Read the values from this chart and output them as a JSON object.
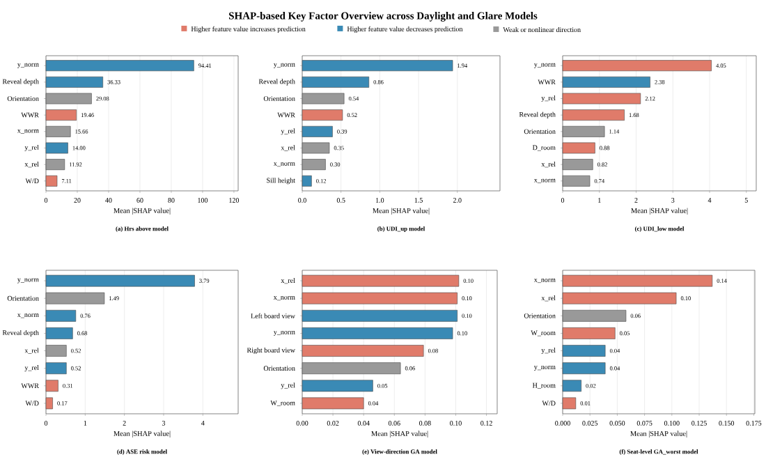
{
  "chart_data": [
    {
      "type": "other",
      "title": "SHAP-based Key Factor Overview across Daylight and Glare Models"
    },
    {
      "type": "bar",
      "orientation": "horizontal",
      "subtitle": "(a) Hrs above model",
      "xlabel": "Mean |SHAP value|",
      "legend": "top",
      "grid": "x",
      "categories": [
        "y_norm",
        "Reveal depth",
        "Orientation",
        "WWR",
        "x_norm",
        "y_rel",
        "x_rel",
        "W/D"
      ],
      "xlim": [
        0,
        122.7
      ],
      "xticks": [
        0,
        20,
        40,
        60,
        80,
        100,
        120
      ],
      "series": [
        {
          "name": "Higher feature value increases prediction",
          "color": "#e07b6a",
          "values": [
            null,
            null,
            null,
            19.46,
            null,
            null,
            null,
            7.11
          ],
          "value_labels": [
            null,
            null,
            null,
            "19.46",
            null,
            null,
            null,
            "7.11"
          ]
        },
        {
          "name": "Higher feature value decreases prediction",
          "color": "#3a8ab5",
          "values": [
            94.41,
            36.33,
            null,
            null,
            null,
            14.0,
            null,
            null
          ],
          "value_labels": [
            "94.41",
            "36.33",
            null,
            null,
            null,
            "14.00",
            null,
            null
          ]
        },
        {
          "name": "Weak or nonlinear direction",
          "color": "#999999",
          "values": [
            null,
            null,
            29.08,
            null,
            15.66,
            null,
            11.92,
            null
          ],
          "value_labels": [
            null,
            null,
            "29.08",
            null,
            "15.66",
            null,
            "11.92",
            null
          ]
        }
      ]
    },
    {
      "type": "bar",
      "orientation": "horizontal",
      "subtitle": "(b) UDI_up model",
      "xlabel": "Mean |SHAP value|",
      "grid": "x",
      "categories": [
        "y_norm",
        "Reveal depth",
        "Orientation",
        "WWR",
        "y_rel",
        "x_rel",
        "x_norm",
        "Sill height"
      ],
      "xlim": [
        0,
        2.55
      ],
      "xticks": [
        {
          "value": 0,
          "label": "0.0"
        },
        {
          "value": 0.5,
          "label": "0.5"
        },
        {
          "value": 1,
          "label": "1.0"
        },
        {
          "value": 1.5,
          "label": "1.5"
        },
        {
          "value": 2,
          "label": "2.0"
        }
      ],
      "series": [
        {
          "color": "#e07b6a",
          "values": [
            null,
            null,
            null,
            0.52,
            null,
            null,
            null,
            null
          ],
          "value_labels": [
            null,
            null,
            null,
            "0.52",
            null,
            null,
            null,
            null
          ]
        },
        {
          "color": "#3a8ab5",
          "values": [
            1.94,
            0.86,
            null,
            null,
            0.39,
            null,
            null,
            0.12
          ],
          "value_labels": [
            "1.94",
            "0.86",
            null,
            null,
            "0.39",
            null,
            null,
            "0.12"
          ]
        },
        {
          "color": "#999999",
          "values": [
            null,
            null,
            0.54,
            null,
            null,
            0.35,
            0.3,
            null
          ],
          "value_labels": [
            null,
            null,
            "0.54",
            null,
            null,
            "0.35",
            "0.30",
            null
          ]
        }
      ]
    },
    {
      "type": "bar",
      "orientation": "horizontal",
      "subtitle": "(c) UDI_low model",
      "xlabel": "Mean |SHAP value|",
      "grid": "x",
      "categories": [
        "y_norm",
        "WWR",
        "y_rel",
        "Reveal depth",
        "Orientation",
        "D_room",
        "x_rel",
        "x_norm"
      ],
      "xlim": [
        0,
        5.27
      ],
      "xticks": [
        0,
        1,
        2,
        3,
        4,
        5
      ],
      "series": [
        {
          "color": "#e07b6a",
          "values": [
            4.05,
            null,
            2.12,
            1.68,
            null,
            0.88,
            null,
            null
          ],
          "value_labels": [
            "4.05",
            null,
            "2.12",
            "1.68",
            null,
            "0.88",
            null,
            null
          ]
        },
        {
          "color": "#3a8ab5",
          "values": [
            null,
            2.38,
            null,
            null,
            null,
            null,
            null,
            null
          ],
          "value_labels": [
            null,
            "2.38",
            null,
            null,
            null,
            null,
            null,
            null
          ]
        },
        {
          "color": "#999999",
          "values": [
            null,
            null,
            null,
            null,
            1.14,
            null,
            0.82,
            0.74
          ],
          "value_labels": [
            null,
            null,
            null,
            null,
            "1.14",
            null,
            "0.82",
            "0.74"
          ]
        }
      ]
    },
    {
      "type": "bar",
      "orientation": "horizontal",
      "subtitle": "(d) ASE risk model",
      "xlabel": "Mean |SHAP value|",
      "grid": "x",
      "categories": [
        "y_norm",
        "Orientation",
        "x_norm",
        "Reveal depth",
        "x_rel",
        "y_rel",
        "WWR",
        "W/D"
      ],
      "xlim": [
        0,
        4.9
      ],
      "xticks": [
        0,
        1,
        2,
        3,
        4
      ],
      "series": [
        {
          "color": "#e07b6a",
          "values": [
            null,
            null,
            null,
            null,
            null,
            null,
            0.31,
            0.17
          ],
          "value_labels": [
            null,
            null,
            null,
            null,
            null,
            null,
            "0.31",
            "0.17"
          ]
        },
        {
          "color": "#3a8ab5",
          "values": [
            3.79,
            null,
            0.76,
            0.68,
            null,
            0.52,
            null,
            null
          ],
          "value_labels": [
            "3.79",
            null,
            "0.76",
            "0.68",
            null,
            "0.52",
            null,
            null
          ]
        },
        {
          "color": "#999999",
          "values": [
            null,
            1.49,
            null,
            null,
            0.52,
            null,
            null,
            null
          ],
          "value_labels": [
            null,
            "1.49",
            null,
            null,
            "0.52",
            null,
            null,
            null
          ]
        }
      ]
    },
    {
      "type": "bar",
      "orientation": "horizontal",
      "subtitle": "(e) View-direction GA model",
      "xlabel": "Mean |SHAP value|",
      "grid": "x",
      "categories": [
        "x_rel",
        "x_norm",
        "Left board view",
        "y_norm",
        "Right board view",
        "Orientation",
        "y_rel",
        "W_room"
      ],
      "xlim": [
        0,
        0.127
      ],
      "xticks": [
        {
          "value": 0,
          "label": "0.00"
        },
        {
          "value": 0.02,
          "label": "0.02"
        },
        {
          "value": 0.04,
          "label": "0.04"
        },
        {
          "value": 0.06,
          "label": "0.06"
        },
        {
          "value": 0.08,
          "label": "0.08"
        },
        {
          "value": 0.1,
          "label": "0.10"
        },
        {
          "value": 0.12,
          "label": "0.12"
        }
      ],
      "series": [
        {
          "color": "#e07b6a",
          "values": [
            0.102,
            0.101,
            null,
            null,
            0.079,
            null,
            null,
            0.04
          ],
          "value_labels": [
            "0.10",
            "0.10",
            null,
            null,
            "0.08",
            null,
            null,
            "0.04"
          ]
        },
        {
          "color": "#3a8ab5",
          "values": [
            null,
            null,
            0.101,
            0.098,
            null,
            null,
            0.046,
            null
          ],
          "value_labels": [
            null,
            null,
            "0.10",
            "0.10",
            null,
            null,
            "0.05",
            null
          ]
        },
        {
          "color": "#999999",
          "values": [
            null,
            null,
            null,
            null,
            null,
            0.064,
            null,
            null
          ],
          "value_labels": [
            null,
            null,
            null,
            null,
            null,
            "0.06",
            null,
            null
          ]
        }
      ]
    },
    {
      "type": "bar",
      "orientation": "horizontal",
      "subtitle": "(f) Seat-level GA_worst model",
      "xlabel": "Mean |SHAP value|",
      "grid": "x",
      "categories": [
        "x_norm",
        "x_rel",
        "Orientation",
        "W_room",
        "y_rel",
        "y_norm",
        "H_room",
        "W/D"
      ],
      "xlim": [
        0,
        0.176
      ],
      "xticks": [
        {
          "value": 0,
          "label": "0.000"
        },
        {
          "value": 0.025,
          "label": "0.025"
        },
        {
          "value": 0.05,
          "label": "0.050"
        },
        {
          "value": 0.075,
          "label": "0.075"
        },
        {
          "value": 0.1,
          "label": "0.100"
        },
        {
          "value": 0.125,
          "label": "0.125"
        },
        {
          "value": 0.15,
          "label": "0.150"
        },
        {
          "value": 0.175,
          "label": "0.175"
        }
      ],
      "series": [
        {
          "color": "#e07b6a",
          "values": [
            0.137,
            0.104,
            null,
            0.048,
            null,
            null,
            null,
            0.012
          ],
          "value_labels": [
            "0.14",
            "0.10",
            null,
            "0.05",
            null,
            null,
            null,
            "0.01"
          ]
        },
        {
          "color": "#3a8ab5",
          "values": [
            null,
            null,
            null,
            null,
            0.039,
            0.039,
            0.017,
            null
          ],
          "value_labels": [
            null,
            null,
            null,
            null,
            "0.04",
            "0.04",
            "0.02",
            null
          ]
        },
        {
          "color": "#999999",
          "values": [
            null,
            null,
            0.058,
            null,
            null,
            null,
            null,
            null
          ],
          "value_labels": [
            null,
            null,
            "0.06",
            null,
            null,
            null,
            null,
            null
          ]
        }
      ]
    }
  ]
}
